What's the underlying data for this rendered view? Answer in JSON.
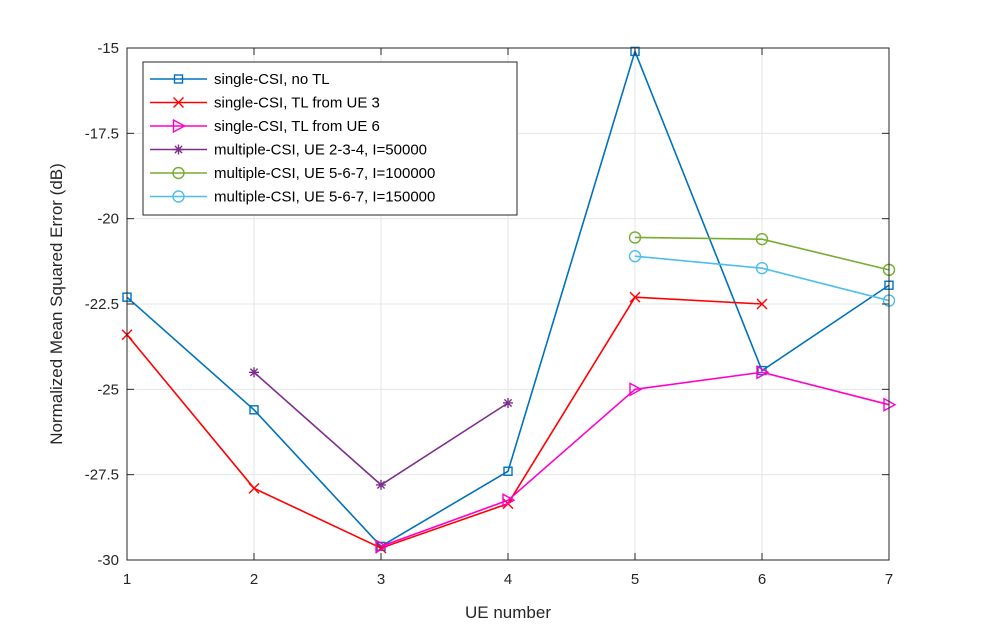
{
  "chart_data": {
    "type": "line",
    "title": "",
    "xlabel": "UE number",
    "ylabel": "Normalized Mean Squared Error (dB)",
    "xlim": [
      1,
      7
    ],
    "ylim": [
      -30,
      -15
    ],
    "xticks": [
      1,
      2,
      3,
      4,
      5,
      6,
      7
    ],
    "xtick_labels": [
      "1",
      "2",
      "3",
      "4",
      "5",
      "6",
      "7"
    ],
    "yticks": [
      -30,
      -27.5,
      -25,
      -22.5,
      -20,
      -17.5,
      -15
    ],
    "ytick_labels": [
      "-30",
      "-27.5",
      "-25",
      "-22.5",
      "-20",
      "-17.5",
      "-15"
    ],
    "grid": true,
    "legend_position": "top-left",
    "series": [
      {
        "name": "single-CSI, no TL",
        "color": "#0072BD",
        "marker": "square",
        "x": [
          1,
          2,
          3,
          4,
          5,
          6,
          7
        ],
        "values": [
          -22.3,
          -25.6,
          -29.6,
          -27.4,
          -15.1,
          -24.45,
          -21.95
        ]
      },
      {
        "name": "single-CSI, TL from UE 3",
        "color": "#FF0000",
        "marker": "x",
        "x": [
          1,
          2,
          3,
          4,
          5,
          6
        ],
        "values": [
          -23.4,
          -27.9,
          -29.65,
          -28.35,
          -22.3,
          -22.5
        ]
      },
      {
        "name": "single-CSI, TL from UE 6",
        "color": "#FF00CC",
        "marker": "triangle-right",
        "x": [
          3,
          4,
          5,
          6,
          7
        ],
        "values": [
          -29.6,
          -28.25,
          -25.0,
          -24.5,
          -25.45
        ]
      },
      {
        "name": "multiple-CSI, UE 2-3-4, I=50000",
        "color": "#7E2F8E",
        "marker": "asterisk",
        "x": [
          2,
          3,
          4
        ],
        "values": [
          -24.5,
          -27.8,
          -25.4
        ]
      },
      {
        "name": "multiple-CSI, UE 5-6-7, I=100000",
        "color": "#77AC30",
        "marker": "circle",
        "x": [
          5,
          6,
          7
        ],
        "values": [
          -20.55,
          -20.6,
          -21.5
        ]
      },
      {
        "name": "multiple-CSI, UE 5-6-7, I=150000",
        "color": "#4DBEEE",
        "marker": "circle",
        "x": [
          5,
          6,
          7
        ],
        "values": [
          -21.1,
          -21.45,
          -22.4
        ]
      }
    ]
  }
}
